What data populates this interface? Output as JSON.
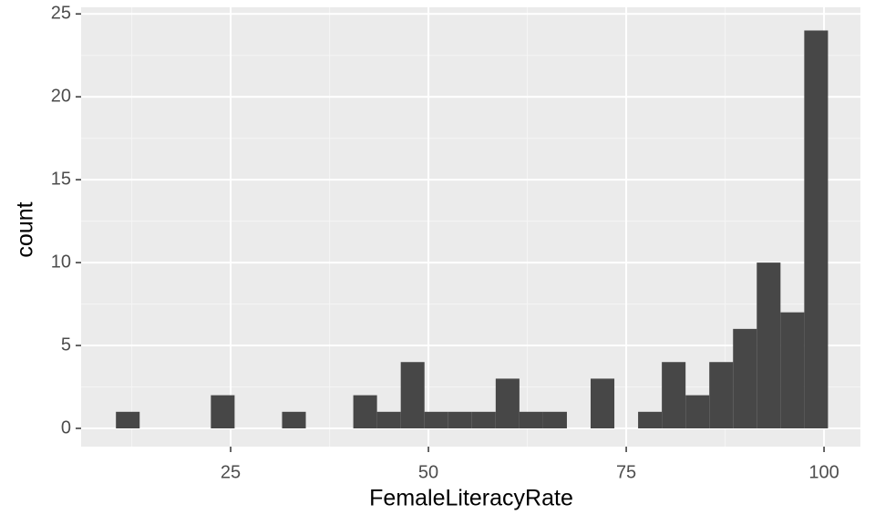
{
  "chart_data": {
    "type": "histogram",
    "x_label": "FemaleLiteracyRate",
    "y_label": "count",
    "bins": [
      10.5,
      13.5,
      16.5,
      19.5,
      22.5,
      25.5,
      28.5,
      31.5,
      34.5,
      37.5,
      40.5,
      43.5,
      46.5,
      49.5,
      52.5,
      55.5,
      58.5,
      61.5,
      64.5,
      67.5,
      70.5,
      73.5,
      76.5,
      79.5,
      82.5,
      85.5,
      88.5,
      91.5,
      94.5,
      97.5,
      100.5
    ],
    "values": [
      1,
      0,
      0,
      0,
      2,
      0,
      0,
      1,
      0,
      0,
      2,
      1,
      4,
      1,
      1,
      1,
      3,
      1,
      1,
      0,
      3,
      0,
      1,
      4,
      2,
      4,
      6,
      10,
      7,
      24
    ],
    "color": "#474747",
    "xlim": [
      6.1,
      104.6
    ],
    "ylim": [
      -1.1,
      25.4
    ],
    "xticks": [
      25,
      50,
      75,
      100
    ],
    "yticks": [
      0,
      5,
      10,
      15,
      20,
      25
    ],
    "grid": true
  }
}
